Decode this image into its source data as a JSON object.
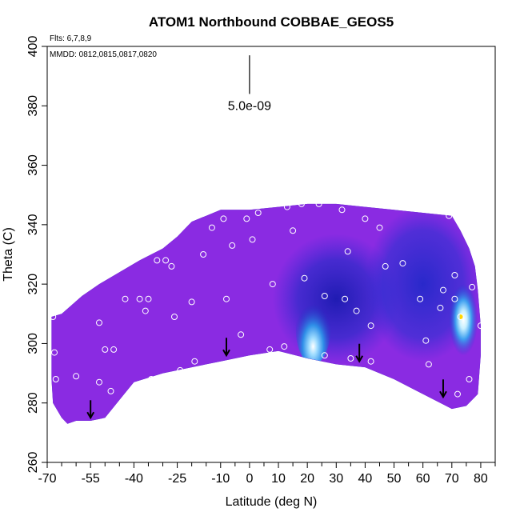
{
  "chart_data": {
    "type": "heatmap",
    "title": "ATOM1 Northbound COBBAE_GEOS5",
    "subtitle_flights": "Flts: 6,7,8,9",
    "dates_note": "MMDD: 0812,0815,0817,0820",
    "xlabel": "Latitude (deg N)",
    "ylabel": "Theta (C)",
    "xlim": [
      -70,
      85
    ],
    "ylim": [
      260,
      400
    ],
    "x_ticks": [
      -70,
      -55,
      -40,
      -25,
      -10,
      0,
      10,
      20,
      30,
      40,
      50,
      60,
      70,
      80
    ],
    "x_tick_labels": [
      "-70",
      "-55",
      "-40",
      "-25",
      "-10",
      "0",
      "10",
      "20",
      "30",
      "40",
      "50",
      "60",
      "70",
      "80"
    ],
    "x_minor_ticks": [
      -65,
      -60,
      -50,
      -45,
      -35,
      -30,
      -20,
      -15,
      -5,
      5,
      15,
      25,
      35,
      45,
      55,
      65,
      75,
      85
    ],
    "y_ticks": [
      260,
      280,
      300,
      320,
      340,
      360,
      380,
      400
    ],
    "y_tick_labels": [
      "260",
      "280",
      "300",
      "320",
      "340",
      "360",
      "380",
      "400"
    ],
    "scale_label": "5.0e-09",
    "scale_bar": {
      "x": 0,
      "y_bottom": 384,
      "y_top": 397
    },
    "colors": {
      "background_field": "#8a2be2",
      "low_trop": "#2020c8",
      "high": "#3fa9ff",
      "peak": "#ffffff",
      "max_spot": "#ffd700",
      "point_stroke": "#ffffff",
      "arrow": "#000000"
    },
    "domain_upper": [
      [
        -68.5,
        309
      ],
      [
        -65,
        310
      ],
      [
        -58,
        316
      ],
      [
        -52,
        320
      ],
      [
        -45,
        324
      ],
      [
        -38,
        328
      ],
      [
        -30,
        332
      ],
      [
        -25,
        336
      ],
      [
        -20,
        341
      ],
      [
        -15,
        343
      ],
      [
        -10,
        345
      ],
      [
        0,
        345
      ],
      [
        10,
        346
      ],
      [
        20,
        347
      ],
      [
        30,
        347
      ],
      [
        40,
        346
      ],
      [
        50,
        345
      ],
      [
        60,
        344
      ],
      [
        70,
        343
      ],
      [
        73,
        338
      ],
      [
        76,
        332
      ],
      [
        78,
        326
      ],
      [
        79,
        318
      ],
      [
        80,
        306
      ],
      [
        80,
        296
      ]
    ],
    "domain_lower": [
      [
        79,
        283
      ],
      [
        75,
        279
      ],
      [
        70,
        278
      ],
      [
        60,
        283
      ],
      [
        50,
        288
      ],
      [
        40,
        292
      ],
      [
        30,
        293
      ],
      [
        20,
        295
      ],
      [
        10,
        297.5
      ],
      [
        0,
        296
      ],
      [
        -10,
        294
      ],
      [
        -20,
        292
      ],
      [
        -30,
        290
      ],
      [
        -40,
        287
      ],
      [
        -45,
        281
      ],
      [
        -50,
        275
      ],
      [
        -55,
        274
      ],
      [
        -60,
        274
      ],
      [
        -63,
        273
      ],
      [
        -65,
        275
      ],
      [
        -68,
        280
      ],
      [
        -68.5,
        288
      ]
    ],
    "field_features": [
      {
        "name": "dark-blue-trop",
        "cx": 30,
        "cy": 315,
        "rx": 22,
        "ry": 22,
        "value": "low"
      },
      {
        "name": "blue-plume-20N",
        "cx": 22,
        "cy": 305,
        "rx": 6,
        "ry": 12,
        "value": "high"
      },
      {
        "name": "blue-arctic",
        "cx": 60,
        "cy": 320,
        "rx": 20,
        "ry": 26,
        "value": "low"
      },
      {
        "name": "bright-arctic",
        "cx": 74,
        "cy": 308,
        "rx": 5,
        "ry": 12,
        "value": "peak"
      }
    ],
    "sample_points": [
      [
        -68,
        309
      ],
      [
        -67.5,
        297
      ],
      [
        -67,
        288
      ],
      [
        -60,
        289
      ],
      [
        -52,
        307
      ],
      [
        -52,
        287
      ],
      [
        -50,
        298
      ],
      [
        -47,
        298
      ],
      [
        -48,
        284
      ],
      [
        -43,
        315
      ],
      [
        -38,
        315
      ],
      [
        -36,
        311
      ],
      [
        -35,
        315
      ],
      [
        -34,
        288
      ],
      [
        -32,
        328
      ],
      [
        -29,
        328
      ],
      [
        -27,
        326
      ],
      [
        -26,
        309
      ],
      [
        -24,
        291
      ],
      [
        -20,
        314
      ],
      [
        -19,
        294
      ],
      [
        -16,
        330
      ],
      [
        -13,
        339
      ],
      [
        -9,
        342
      ],
      [
        -8,
        315
      ],
      [
        -6,
        333
      ],
      [
        -3,
        303
      ],
      [
        -1,
        342
      ],
      [
        1,
        335
      ],
      [
        3,
        344
      ],
      [
        7,
        298
      ],
      [
        8,
        320
      ],
      [
        12,
        299
      ],
      [
        13,
        346
      ],
      [
        15,
        338
      ],
      [
        18,
        347
      ],
      [
        19,
        322
      ],
      [
        24,
        347
      ],
      [
        26,
        316
      ],
      [
        26,
        296
      ],
      [
        32,
        345
      ],
      [
        33,
        315
      ],
      [
        34,
        331
      ],
      [
        35,
        295
      ],
      [
        37,
        311
      ],
      [
        40,
        342
      ],
      [
        42,
        306
      ],
      [
        42,
        294
      ],
      [
        45,
        339
      ],
      [
        47,
        326
      ],
      [
        53,
        327
      ],
      [
        59,
        315
      ],
      [
        61,
        301
      ],
      [
        62,
        293
      ],
      [
        66,
        312
      ],
      [
        67,
        318
      ],
      [
        69,
        343
      ],
      [
        71,
        315
      ],
      [
        71,
        323
      ],
      [
        72,
        283
      ],
      [
        73,
        309
      ],
      [
        76,
        288
      ],
      [
        77,
        319
      ],
      [
        80,
        306
      ]
    ],
    "arrows": [
      [
        -55,
        275
      ],
      [
        -8,
        296
      ],
      [
        38,
        294
      ],
      [
        67,
        282
      ]
    ]
  }
}
